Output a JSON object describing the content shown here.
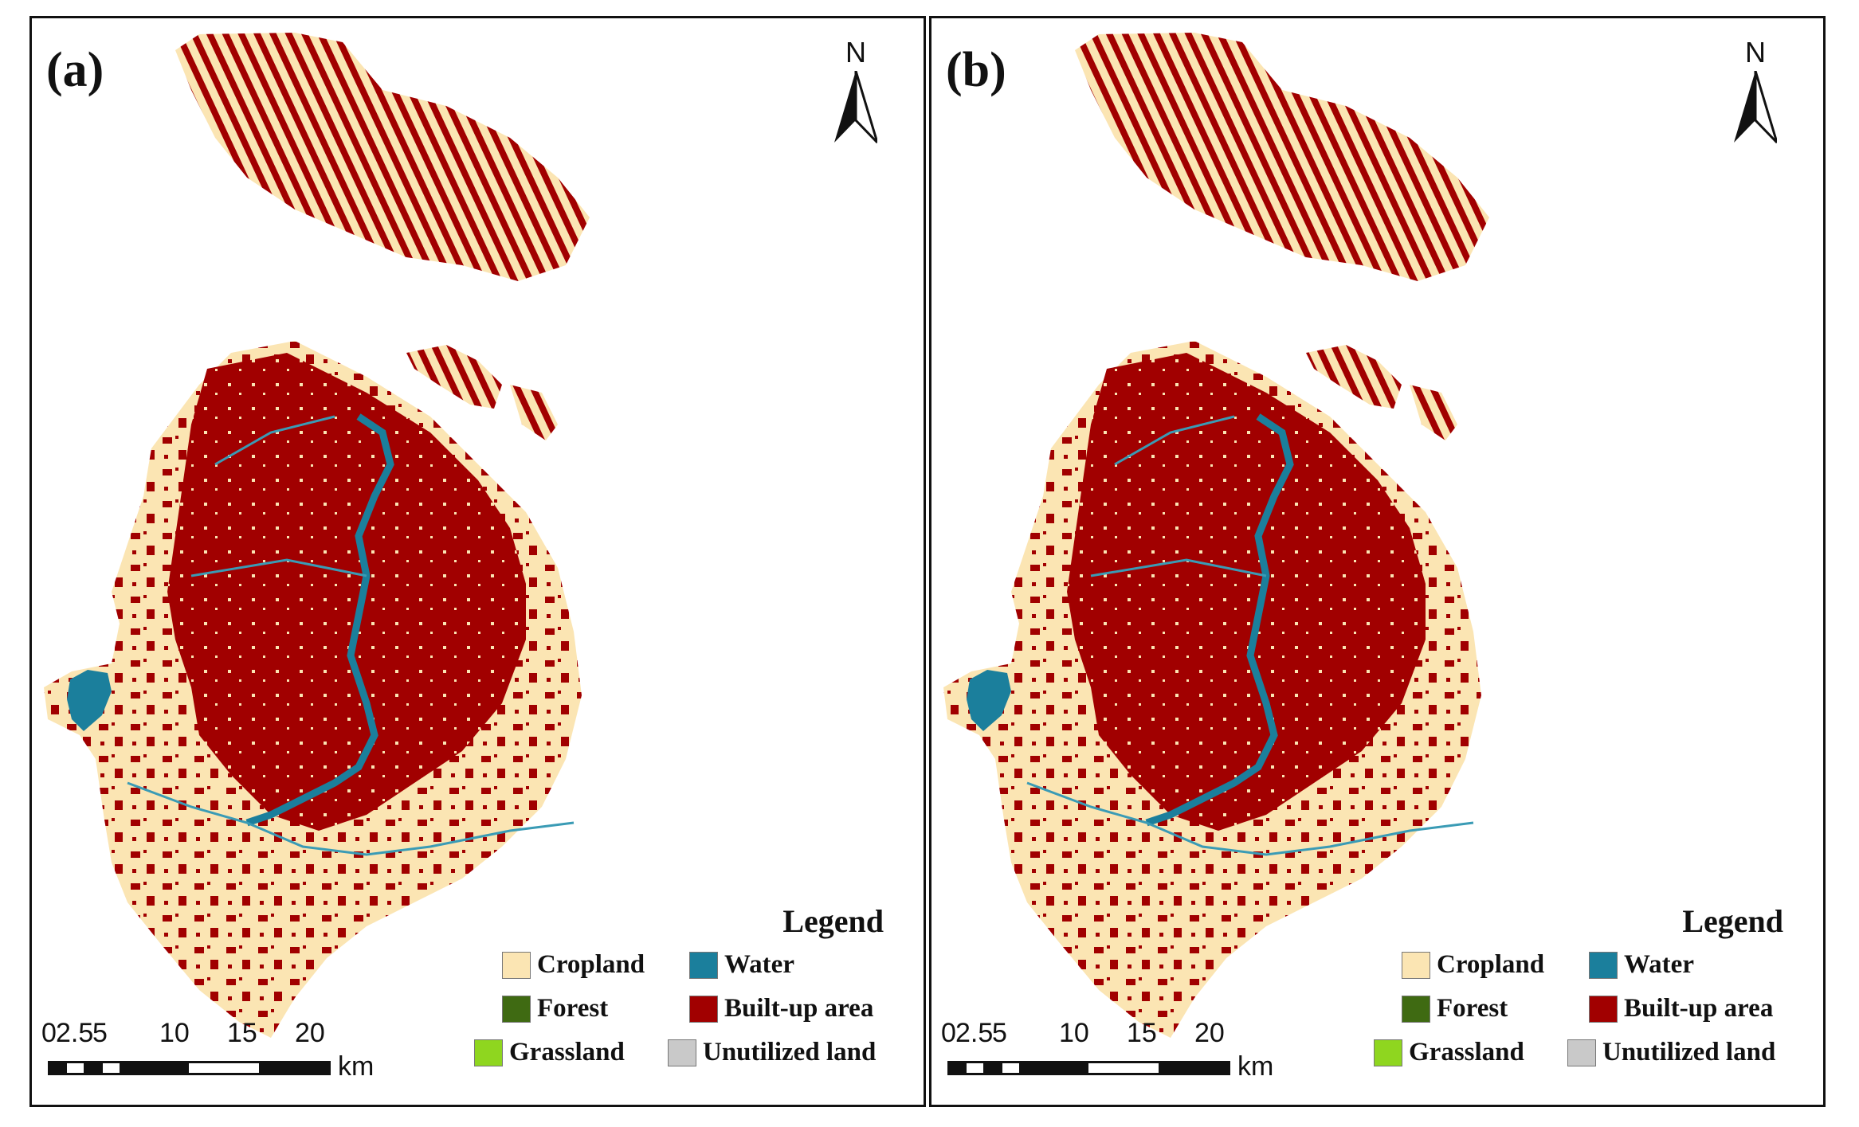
{
  "panels": [
    {
      "label": "(a)",
      "north_letter": "N",
      "legend_title": "Legend",
      "scale_ticks": [
        "0",
        "2.5",
        "5",
        "10",
        "15",
        "20"
      ],
      "scale_unit": "km"
    },
    {
      "label": "(b)",
      "north_letter": "N",
      "legend_title": "Legend",
      "scale_ticks": [
        "0",
        "2.5",
        "5",
        "10",
        "15",
        "20"
      ],
      "scale_unit": "km"
    }
  ],
  "legend_items": [
    {
      "label": "Cropland",
      "color": "#fbe5b3"
    },
    {
      "label": "Water",
      "color": "#1b7f9c"
    },
    {
      "label": "Forest",
      "color": "#3f6a12"
    },
    {
      "label": "Built-up area",
      "color": "#a10000"
    },
    {
      "label": "Grassland",
      "color": "#8fd61f"
    },
    {
      "label": "Unutilized land",
      "color": "#c9c9c9"
    }
  ]
}
